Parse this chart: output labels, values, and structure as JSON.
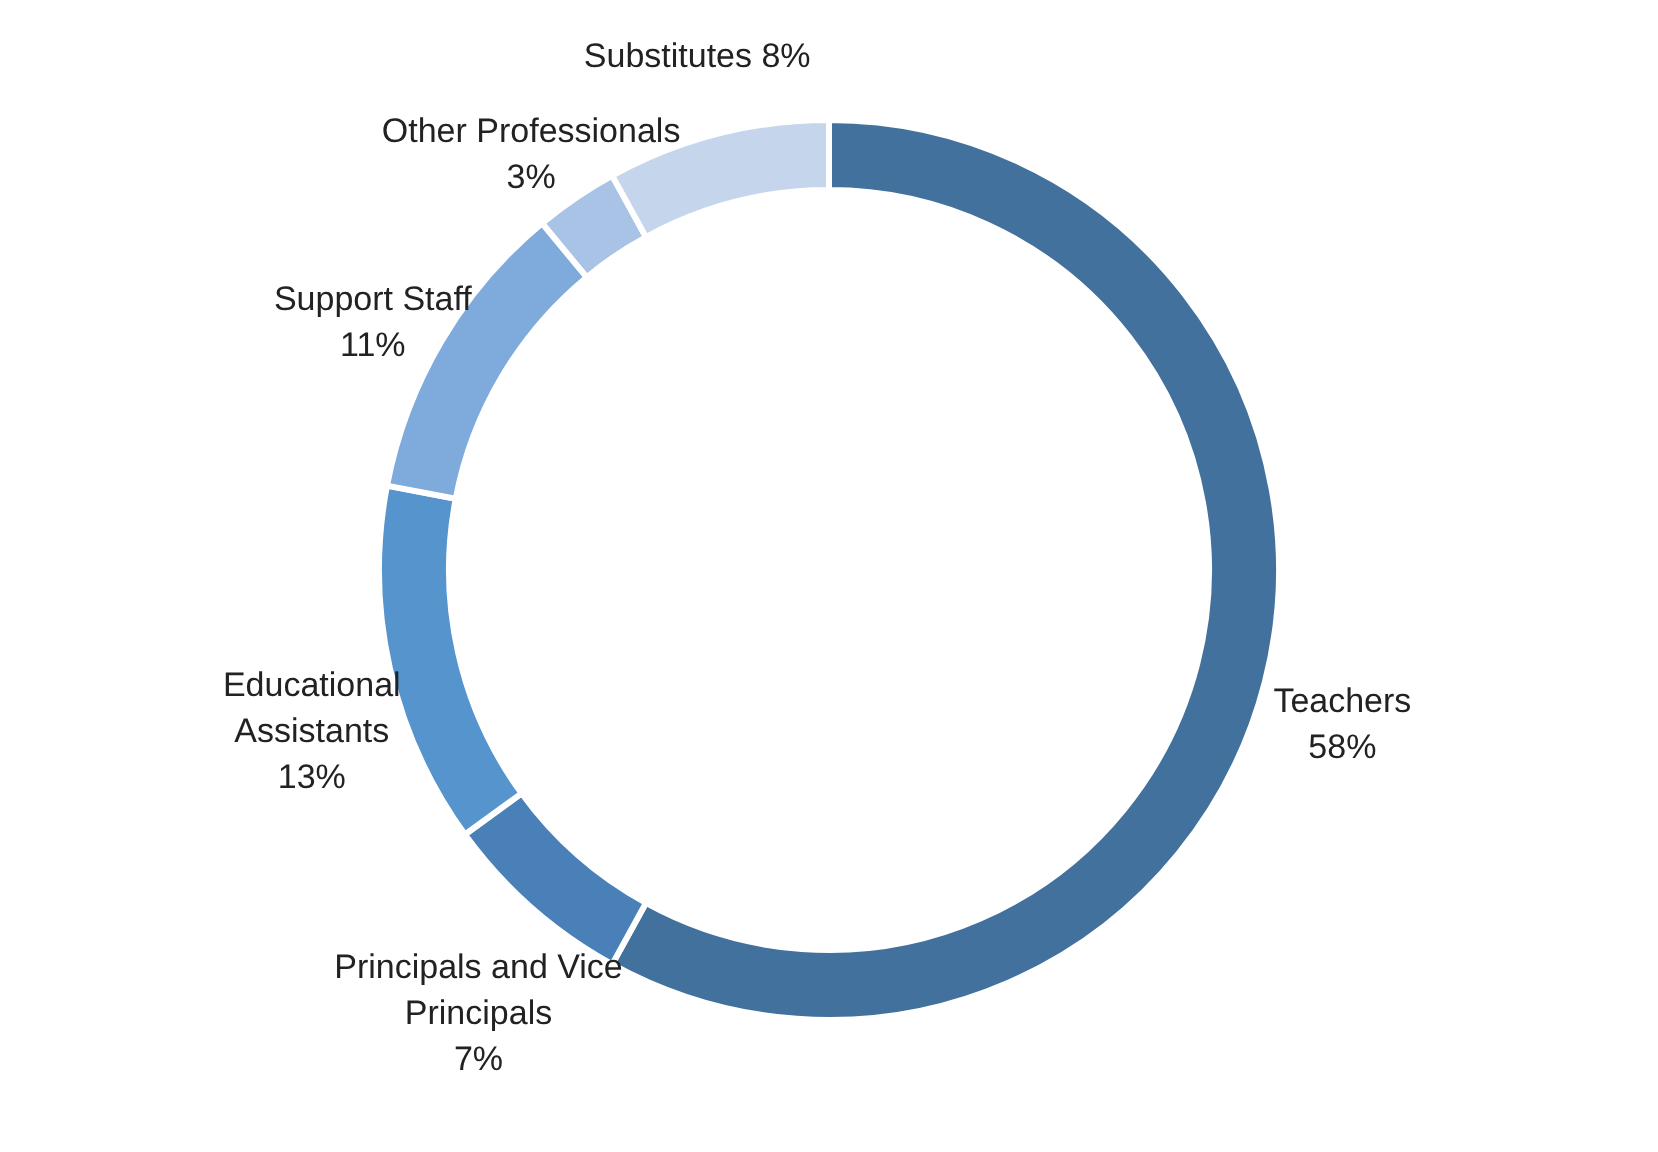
{
  "chart_data": {
    "type": "donut",
    "categories": [
      "Teachers",
      "Principals and Vice Principals",
      "Educational Assistants",
      "Support Staff",
      "Other Professionals",
      "Substitutes"
    ],
    "values": [
      58,
      7,
      13,
      11,
      3,
      8
    ],
    "value_labels": [
      "58%",
      "7%",
      "13%",
      "11%",
      "3%",
      "8%"
    ],
    "colors": [
      "#41719c",
      "#4a80b8",
      "#5594cd",
      "#7eaadc",
      "#a8c3e6",
      "#c5d5ec"
    ],
    "legend": false
  }
}
